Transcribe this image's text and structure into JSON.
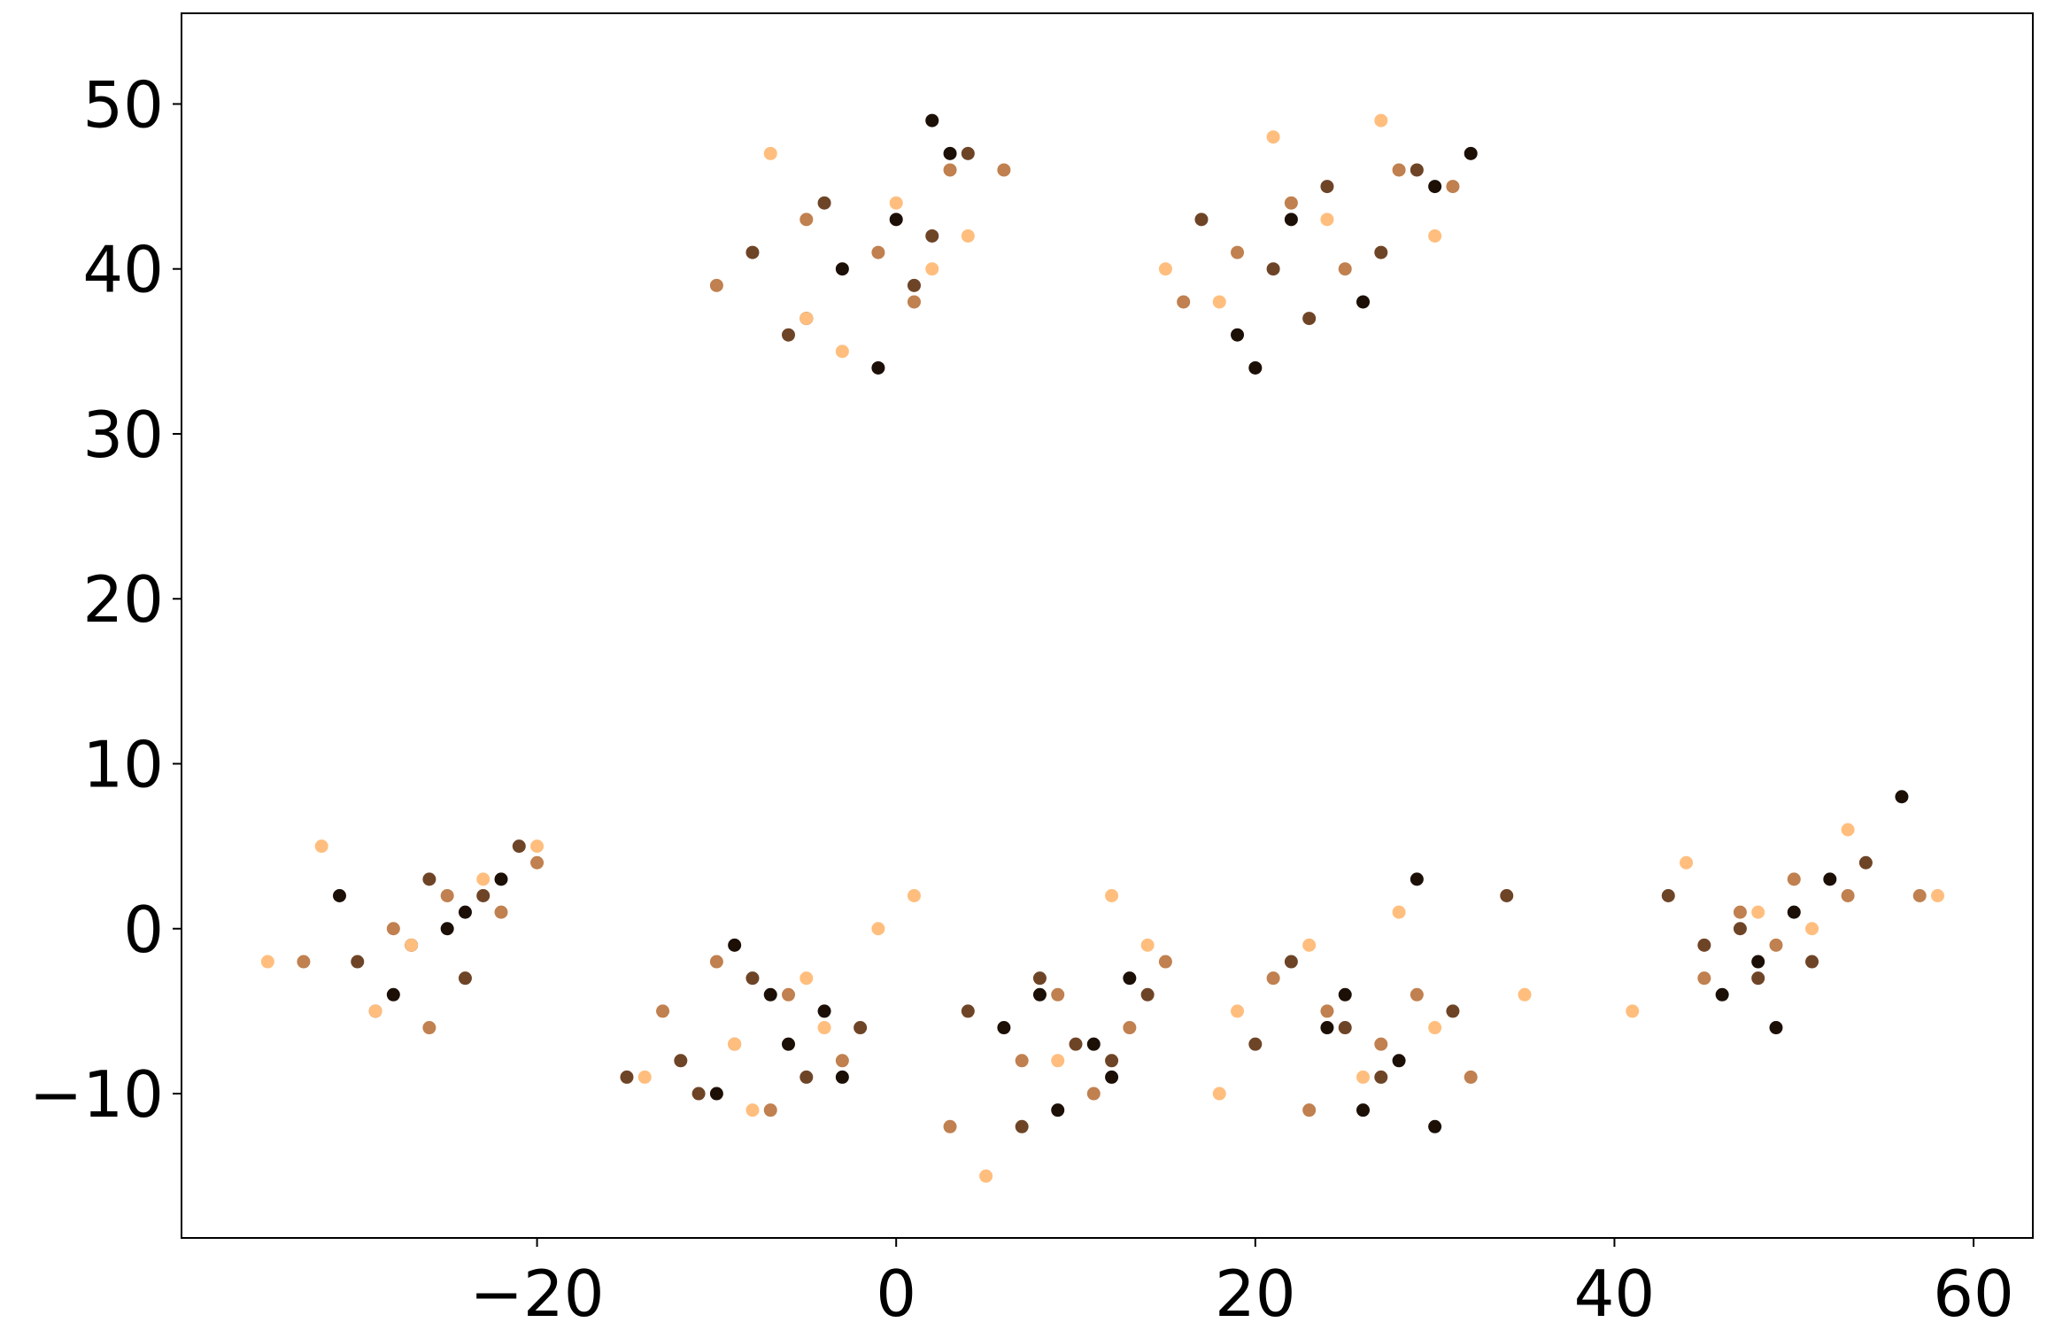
{
  "chart_data": {
    "type": "scatter",
    "xlim": [
      -39.8,
      63.3
    ],
    "ylim": [
      -18.75,
      55.5
    ],
    "xticks": [
      {
        "value": -20,
        "label": "−20"
      },
      0,
      20,
      40,
      60
    ],
    "yticks": [
      {
        "value": -10,
        "label": "−10"
      },
      0,
      10,
      20,
      30,
      40,
      50
    ],
    "grid": false,
    "series": [
      {
        "color": "#1c0f06",
        "x": [
          -31,
          -27,
          -24,
          -22,
          -28,
          -25,
          -9,
          -6,
          -4,
          -10,
          -7,
          -3,
          8,
          11,
          13,
          9,
          12,
          6,
          25,
          28,
          30,
          26,
          24,
          29,
          48,
          50,
          46,
          52,
          56,
          49,
          -1,
          2,
          -5,
          3,
          0,
          -3,
          20,
          22,
          26,
          30,
          19,
          32
        ],
        "y": [
          2,
          -1,
          1,
          3,
          -4,
          0,
          -1,
          -7,
          -5,
          -10,
          -4,
          -9,
          -4,
          -7,
          -3,
          -11,
          -9,
          -6,
          -4,
          -8,
          -12,
          -11,
          -6,
          3,
          -2,
          1,
          -4,
          3,
          8,
          -6,
          34,
          49,
          37,
          47,
          43,
          40,
          34,
          43,
          38,
          45,
          36,
          47
        ]
      },
      {
        "color": "#6e4427",
        "x": [
          -30,
          -26,
          -23,
          -21,
          -29,
          -24,
          -12,
          -8,
          -5,
          -2,
          -11,
          -15,
          4,
          8,
          10,
          14,
          7,
          12,
          22,
          25,
          27,
          31,
          20,
          34,
          43,
          47,
          51,
          54,
          48,
          45,
          -8,
          -4,
          1,
          4,
          -6,
          2,
          17,
          21,
          24,
          27,
          23,
          29
        ],
        "y": [
          -2,
          3,
          2,
          5,
          -5,
          -3,
          -8,
          -3,
          -9,
          -6,
          -10,
          -9,
          -5,
          -3,
          -7,
          -4,
          -12,
          -8,
          -2,
          -6,
          -9,
          -5,
          -7,
          2,
          2,
          0,
          -2,
          4,
          -3,
          -1,
          41,
          44,
          39,
          47,
          36,
          42,
          43,
          40,
          45,
          41,
          37,
          46
        ]
      },
      {
        "color": "#c0804f",
        "x": [
          -33,
          -28,
          -25,
          -20,
          -26,
          -22,
          -13,
          -9,
          -6,
          -3,
          -7,
          -10,
          3,
          7,
          9,
          11,
          13,
          15,
          21,
          24,
          27,
          29,
          32,
          23,
          45,
          47,
          50,
          53,
          49,
          57,
          -10,
          -5,
          -1,
          3,
          1,
          6,
          16,
          19,
          22,
          25,
          28,
          31
        ],
        "y": [
          -2,
          0,
          2,
          4,
          -6,
          1,
          -5,
          -7,
          -4,
          -8,
          -11,
          -2,
          -12,
          -8,
          -4,
          -10,
          -6,
          -2,
          -3,
          -5,
          -7,
          -4,
          -9,
          -11,
          -3,
          1,
          3,
          2,
          -1,
          2,
          39,
          43,
          41,
          46,
          38,
          46,
          38,
          41,
          44,
          40,
          46,
          45
        ]
      },
      {
        "color": "#ffbe7e",
        "x": [
          -35,
          -29,
          -27,
          -23,
          -20,
          -32,
          -14,
          -8,
          -4,
          -1,
          -9,
          -5,
          1,
          5,
          9,
          12,
          14,
          18,
          19,
          23,
          26,
          28,
          30,
          35,
          41,
          44,
          48,
          51,
          53,
          58,
          -7,
          -3,
          0,
          2,
          4,
          -5,
          15,
          18,
          21,
          24,
          27,
          30
        ],
        "y": [
          -2,
          -5,
          -1,
          3,
          5,
          5,
          -9,
          -11,
          -6,
          0,
          -7,
          -3,
          2,
          -15,
          -8,
          2,
          -1,
          -10,
          -5,
          -1,
          -9,
          1,
          -6,
          -4,
          -5,
          4,
          1,
          0,
          6,
          2,
          47,
          35,
          44,
          40,
          42,
          37,
          40,
          38,
          48,
          43,
          49,
          42
        ]
      }
    ]
  }
}
